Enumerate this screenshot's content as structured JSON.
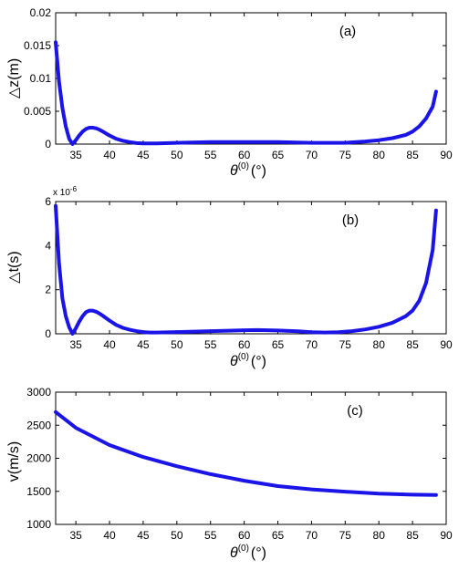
{
  "chart_data": [
    {
      "type": "line",
      "panel_label": "(a)",
      "ylabel": "△z(m)",
      "xlabel_main": "θ",
      "xlabel_sup": "(0)",
      "xlabel_unit": "(°)",
      "xlim": [
        32,
        90
      ],
      "ylim": [
        0,
        0.02
      ],
      "xticks": [
        35,
        40,
        45,
        50,
        55,
        60,
        65,
        70,
        75,
        80,
        85,
        90
      ],
      "yticks": [
        0,
        0.005,
        0.01,
        0.015,
        0.02
      ],
      "ytick_labels": [
        "0",
        "0.005",
        "0.01",
        "0.015",
        "0.02"
      ],
      "color": "#1a14e6",
      "x": [
        32.0,
        32.5,
        33.0,
        33.5,
        34.0,
        34.5,
        35.0,
        35.5,
        36.0,
        36.5,
        37.0,
        37.5,
        38.0,
        38.5,
        39.0,
        40.0,
        41.0,
        42.0,
        43.0,
        44.0,
        45.0,
        46.0,
        47.0,
        50.0,
        55.0,
        60.0,
        65.0,
        70.0,
        72.0,
        75.0,
        78.0,
        80.0,
        82.0,
        84.0,
        85.0,
        86.0,
        87.0,
        88.0,
        88.5
      ],
      "y": [
        0.0155,
        0.0095,
        0.0055,
        0.0027,
        0.0008,
        0.0,
        0.0006,
        0.0013,
        0.0019,
        0.0023,
        0.0025,
        0.0025,
        0.0024,
        0.0022,
        0.0019,
        0.0013,
        0.0008,
        0.0005,
        0.0003,
        0.00015,
        0.0001,
        0.0001,
        0.0001,
        0.0002,
        0.0003,
        0.0003,
        0.0003,
        0.0002,
        0.0002,
        0.0002,
        0.0004,
        0.0006,
        0.0009,
        0.0014,
        0.0019,
        0.0027,
        0.0039,
        0.0057,
        0.008
      ]
    },
    {
      "type": "line",
      "panel_label": "(b)",
      "ylabel": "△t(s)",
      "xlabel_main": "θ",
      "xlabel_sup": "(0)",
      "xlabel_unit": "(°)",
      "xlim": [
        32,
        90
      ],
      "ylim": [
        0,
        6
      ],
      "y_multiplier": "x 10",
      "y_multiplier_exp": "-6",
      "xticks": [
        35,
        40,
        45,
        50,
        55,
        60,
        65,
        70,
        75,
        80,
        85,
        90
      ],
      "yticks": [
        0,
        2,
        4,
        6
      ],
      "ytick_labels": [
        "0",
        "2",
        "4",
        "6"
      ],
      "color": "#1a14e6",
      "x": [
        32.0,
        32.5,
        33.0,
        33.5,
        34.0,
        34.5,
        35.0,
        35.5,
        36.0,
        36.5,
        37.0,
        37.5,
        38.0,
        38.5,
        39.0,
        40.0,
        41.0,
        42.0,
        43.0,
        44.0,
        45.0,
        46.0,
        47.0,
        50.0,
        55.0,
        60.0,
        62.0,
        65.0,
        68.0,
        70.0,
        72.0,
        74.0,
        76.0,
        78.0,
        80.0,
        82.0,
        84.0,
        85.0,
        86.0,
        87.0,
        88.0,
        88.5
      ],
      "y": [
        5.8,
        3.2,
        1.6,
        0.8,
        0.3,
        0.0,
        0.25,
        0.55,
        0.8,
        0.98,
        1.05,
        1.05,
        1.0,
        0.92,
        0.82,
        0.6,
        0.4,
        0.27,
        0.18,
        0.12,
        0.08,
        0.06,
        0.06,
        0.08,
        0.12,
        0.16,
        0.17,
        0.15,
        0.11,
        0.07,
        0.06,
        0.07,
        0.12,
        0.2,
        0.32,
        0.5,
        0.8,
        1.05,
        1.5,
        2.3,
        3.8,
        5.6
      ]
    },
    {
      "type": "line",
      "panel_label": "(c)",
      "ylabel": "v(m/s)",
      "xlabel_main": "θ",
      "xlabel_sup": "(0)",
      "xlabel_unit": "(°)",
      "xlim": [
        32,
        90
      ],
      "ylim": [
        1000,
        3000
      ],
      "xticks": [
        35,
        40,
        45,
        50,
        55,
        60,
        65,
        70,
        75,
        80,
        85,
        90
      ],
      "yticks": [
        1000,
        1500,
        2000,
        2500,
        3000
      ],
      "ytick_labels": [
        "1000",
        "1500",
        "2000",
        "2500",
        "3000"
      ],
      "color": "#1a14e6",
      "x": [
        32,
        35,
        40,
        45,
        50,
        55,
        60,
        65,
        70,
        75,
        80,
        85,
        88.5
      ],
      "y": [
        2700,
        2460,
        2200,
        2020,
        1880,
        1760,
        1660,
        1580,
        1530,
        1495,
        1465,
        1450,
        1445
      ]
    }
  ]
}
